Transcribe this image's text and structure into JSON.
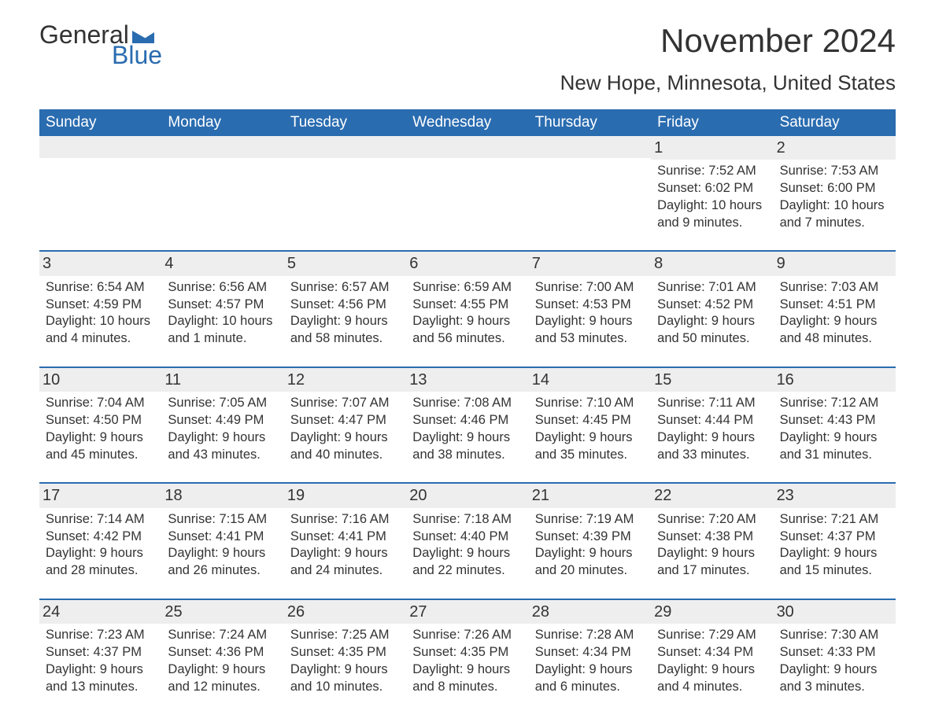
{
  "brand": {
    "general": "General",
    "blue": "Blue",
    "flag_color": "#2a6cb0"
  },
  "title": {
    "month": "November 2024",
    "location": "New Hope, Minnesota, United States"
  },
  "styling": {
    "header_bg": "#2a6cb0",
    "header_text": "#ffffff",
    "row_border": "#2a6cb0",
    "daynum_bg": "#eeeeee",
    "body_text": "#333333",
    "page_bg": "#ffffff",
    "font_family": "Arial",
    "title_fontsize": 42,
    "location_fontsize": 26,
    "dayheader_fontsize": 19,
    "cell_fontsize": 16.5
  },
  "day_names": [
    "Sunday",
    "Monday",
    "Tuesday",
    "Wednesday",
    "Thursday",
    "Friday",
    "Saturday"
  ],
  "weeks": [
    [
      null,
      null,
      null,
      null,
      null,
      {
        "n": "1",
        "sunrise": "7:52 AM",
        "sunset": "6:02 PM",
        "daylight": "10 hours and 9 minutes."
      },
      {
        "n": "2",
        "sunrise": "7:53 AM",
        "sunset": "6:00 PM",
        "daylight": "10 hours and 7 minutes."
      }
    ],
    [
      {
        "n": "3",
        "sunrise": "6:54 AM",
        "sunset": "4:59 PM",
        "daylight": "10 hours and 4 minutes."
      },
      {
        "n": "4",
        "sunrise": "6:56 AM",
        "sunset": "4:57 PM",
        "daylight": "10 hours and 1 minute."
      },
      {
        "n": "5",
        "sunrise": "6:57 AM",
        "sunset": "4:56 PM",
        "daylight": "9 hours and 58 minutes."
      },
      {
        "n": "6",
        "sunrise": "6:59 AM",
        "sunset": "4:55 PM",
        "daylight": "9 hours and 56 minutes."
      },
      {
        "n": "7",
        "sunrise": "7:00 AM",
        "sunset": "4:53 PM",
        "daylight": "9 hours and 53 minutes."
      },
      {
        "n": "8",
        "sunrise": "7:01 AM",
        "sunset": "4:52 PM",
        "daylight": "9 hours and 50 minutes."
      },
      {
        "n": "9",
        "sunrise": "7:03 AM",
        "sunset": "4:51 PM",
        "daylight": "9 hours and 48 minutes."
      }
    ],
    [
      {
        "n": "10",
        "sunrise": "7:04 AM",
        "sunset": "4:50 PM",
        "daylight": "9 hours and 45 minutes."
      },
      {
        "n": "11",
        "sunrise": "7:05 AM",
        "sunset": "4:49 PM",
        "daylight": "9 hours and 43 minutes."
      },
      {
        "n": "12",
        "sunrise": "7:07 AM",
        "sunset": "4:47 PM",
        "daylight": "9 hours and 40 minutes."
      },
      {
        "n": "13",
        "sunrise": "7:08 AM",
        "sunset": "4:46 PM",
        "daylight": "9 hours and 38 minutes."
      },
      {
        "n": "14",
        "sunrise": "7:10 AM",
        "sunset": "4:45 PM",
        "daylight": "9 hours and 35 minutes."
      },
      {
        "n": "15",
        "sunrise": "7:11 AM",
        "sunset": "4:44 PM",
        "daylight": "9 hours and 33 minutes."
      },
      {
        "n": "16",
        "sunrise": "7:12 AM",
        "sunset": "4:43 PM",
        "daylight": "9 hours and 31 minutes."
      }
    ],
    [
      {
        "n": "17",
        "sunrise": "7:14 AM",
        "sunset": "4:42 PM",
        "daylight": "9 hours and 28 minutes."
      },
      {
        "n": "18",
        "sunrise": "7:15 AM",
        "sunset": "4:41 PM",
        "daylight": "9 hours and 26 minutes."
      },
      {
        "n": "19",
        "sunrise": "7:16 AM",
        "sunset": "4:41 PM",
        "daylight": "9 hours and 24 minutes."
      },
      {
        "n": "20",
        "sunrise": "7:18 AM",
        "sunset": "4:40 PM",
        "daylight": "9 hours and 22 minutes."
      },
      {
        "n": "21",
        "sunrise": "7:19 AM",
        "sunset": "4:39 PM",
        "daylight": "9 hours and 20 minutes."
      },
      {
        "n": "22",
        "sunrise": "7:20 AM",
        "sunset": "4:38 PM",
        "daylight": "9 hours and 17 minutes."
      },
      {
        "n": "23",
        "sunrise": "7:21 AM",
        "sunset": "4:37 PM",
        "daylight": "9 hours and 15 minutes."
      }
    ],
    [
      {
        "n": "24",
        "sunrise": "7:23 AM",
        "sunset": "4:37 PM",
        "daylight": "9 hours and 13 minutes."
      },
      {
        "n": "25",
        "sunrise": "7:24 AM",
        "sunset": "4:36 PM",
        "daylight": "9 hours and 12 minutes."
      },
      {
        "n": "26",
        "sunrise": "7:25 AM",
        "sunset": "4:35 PM",
        "daylight": "9 hours and 10 minutes."
      },
      {
        "n": "27",
        "sunrise": "7:26 AM",
        "sunset": "4:35 PM",
        "daylight": "9 hours and 8 minutes."
      },
      {
        "n": "28",
        "sunrise": "7:28 AM",
        "sunset": "4:34 PM",
        "daylight": "9 hours and 6 minutes."
      },
      {
        "n": "29",
        "sunrise": "7:29 AM",
        "sunset": "4:34 PM",
        "daylight": "9 hours and 4 minutes."
      },
      {
        "n": "30",
        "sunrise": "7:30 AM",
        "sunset": "4:33 PM",
        "daylight": "9 hours and 3 minutes."
      }
    ]
  ],
  "labels": {
    "sunrise": "Sunrise: ",
    "sunset": "Sunset: ",
    "daylight": "Daylight: "
  }
}
